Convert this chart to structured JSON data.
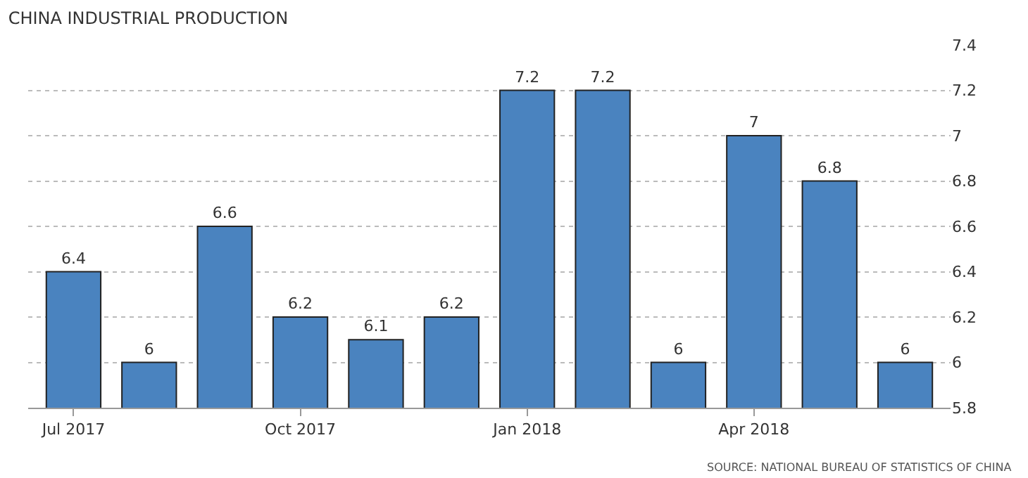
{
  "chart_data": {
    "type": "bar",
    "title": "CHINA INDUSTRIAL PRODUCTION",
    "categories": [
      "Jul 2017",
      null,
      null,
      "Oct 2017",
      null,
      null,
      "Jan 2018",
      null,
      null,
      "Apr 2018",
      null,
      null
    ],
    "values": [
      6.4,
      6,
      6.6,
      6.2,
      6.1,
      6.2,
      7.2,
      7.2,
      6,
      7,
      6.8,
      6
    ],
    "color": "#4a83bf",
    "ylim": [
      5.8,
      7.4
    ],
    "yticks": [
      5.8,
      6,
      6.2,
      6.4,
      6.6,
      6.8,
      7,
      7.2,
      7.4
    ],
    "grid": "y",
    "data_labels": true,
    "annotations": [
      "SOURCE: NATIONAL BUREAU OF STATISTICS OF CHINA"
    ]
  }
}
